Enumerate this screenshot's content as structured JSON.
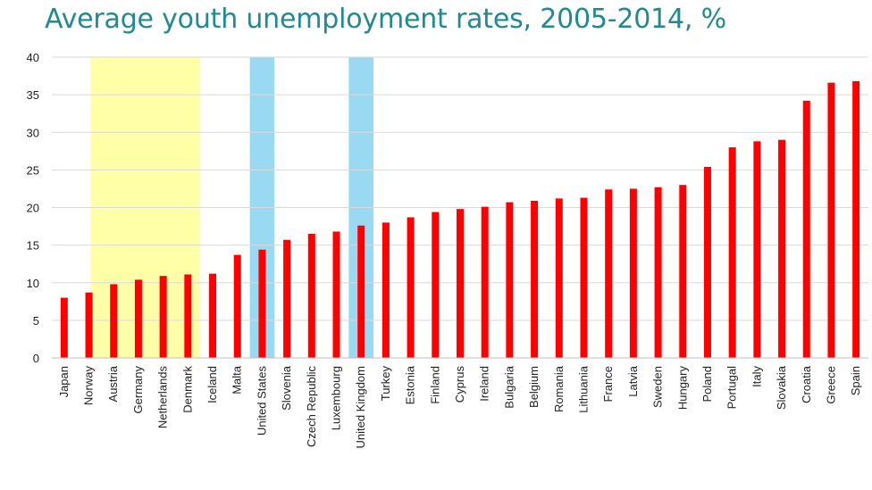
{
  "chart_data": {
    "type": "bar",
    "title": "Average youth unemployment rates, 2005-2014, %",
    "categories": [
      "Japan",
      "Norway",
      "Austria",
      "Germany",
      "Netherlands",
      "Denmark",
      "Iceland",
      "Malta",
      "United States",
      "Slovenia",
      "Czech Republic",
      "Luxembourg",
      "United Kingdom",
      "Turkey",
      "Estonia",
      "Finland",
      "Cyprus",
      "Ireland",
      "Bulgaria",
      "Belgium",
      "Romania",
      "Lithuania",
      "France",
      "Latvia",
      "Sweden",
      "Hungary",
      "Poland",
      "Portugal",
      "Italy",
      "Slovakia",
      "Croatia",
      "Greece",
      "Spain"
    ],
    "values": [
      8.0,
      8.7,
      9.8,
      10.4,
      10.9,
      11.1,
      11.2,
      13.7,
      14.4,
      15.7,
      16.5,
      16.8,
      17.6,
      18.0,
      18.7,
      19.4,
      19.8,
      20.1,
      20.7,
      20.9,
      21.2,
      21.3,
      22.4,
      22.5,
      22.7,
      23.0,
      25.4,
      28.0,
      28.8,
      29.0,
      34.2,
      36.6,
      36.8
    ],
    "ylim": [
      0,
      40
    ],
    "yticks": [
      0,
      5,
      10,
      15,
      20,
      25,
      30,
      35,
      40
    ],
    "grid": true,
    "xlabel": "",
    "ylabel": "",
    "colors": {
      "bar": "#ff0000",
      "highlight_yellow": "#ffff99",
      "highlight_blue": "#87d3f0",
      "gridline": "#d9d9d9",
      "title": "#1f8a8f"
    },
    "highlight_bands": [
      {
        "color": "yellow",
        "from": "Austria",
        "to": "Denmark",
        "extend_left": true
      },
      {
        "color": "blue",
        "from": "United States",
        "to": "United States"
      },
      {
        "color": "blue",
        "from": "United Kingdom",
        "to": "United Kingdom"
      }
    ]
  }
}
